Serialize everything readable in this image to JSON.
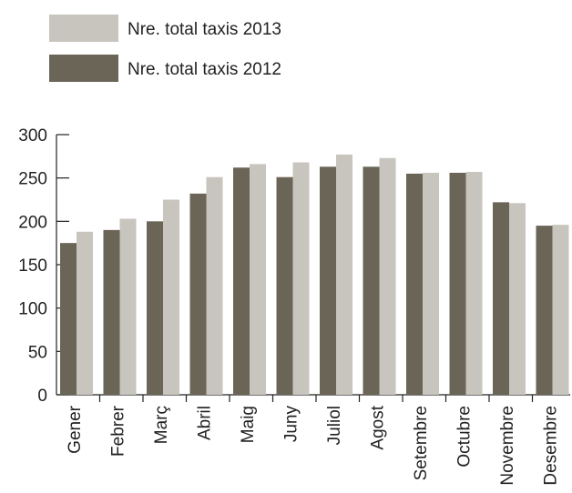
{
  "chart_data": {
    "type": "bar",
    "categories": [
      "Gener",
      "Febrer",
      "Març",
      "Abril",
      "Maig",
      "Juny",
      "Juliol",
      "Agost",
      "Setembre",
      "Octubre",
      "Novembre",
      "Desembre"
    ],
    "series": [
      {
        "name": "Nre. total taxis 2012",
        "color": "#6b6558",
        "values": [
          175,
          190,
          200,
          232,
          262,
          251,
          263,
          263,
          255,
          256,
          222,
          195
        ]
      },
      {
        "name": "Nre. total taxis 2013",
        "color": "#c8c4be",
        "values": [
          188,
          203,
          225,
          251,
          266,
          268,
          277,
          273,
          256,
          257,
          221,
          196
        ]
      }
    ],
    "legend": [
      {
        "label": "Nre. total taxis 2013",
        "color": "#c8c4be"
      },
      {
        "label": "Nre. total taxis 2012",
        "color": "#6b6558"
      }
    ],
    "yticks": [
      "0",
      "50",
      "100",
      "150",
      "200",
      "250",
      "300"
    ],
    "ylim": [
      0,
      300
    ],
    "grid": false,
    "legend_position": "top-left"
  }
}
